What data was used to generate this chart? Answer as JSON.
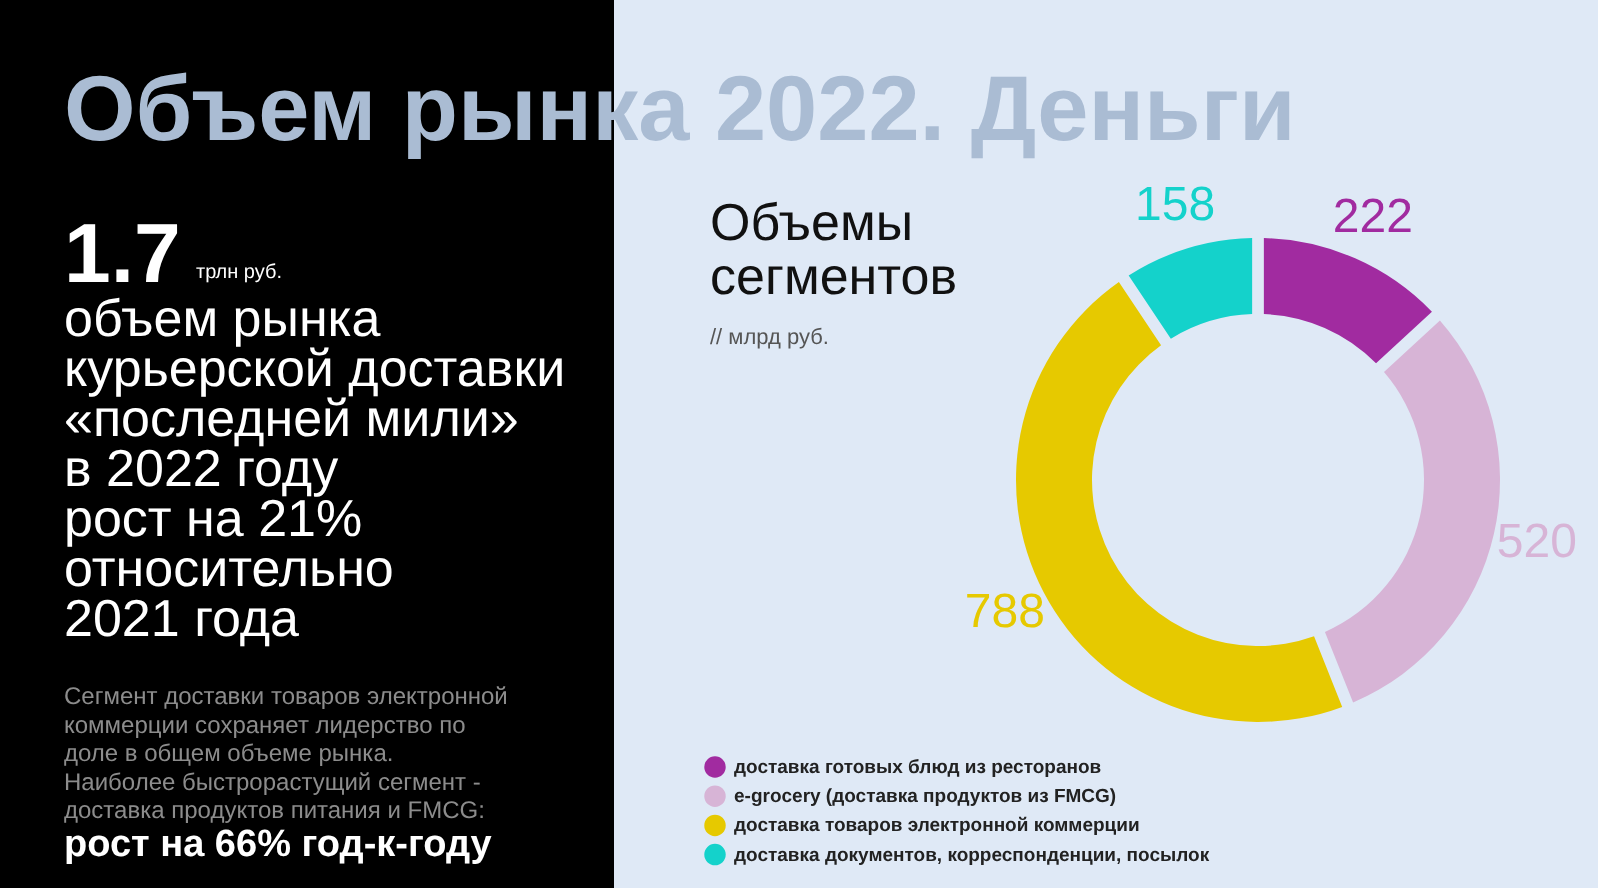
{
  "chart_data": {
    "type": "donut",
    "title": "Объем рынка 2022. Деньги",
    "subtitle": "Объемы\nсегментов",
    "categories": [
      "доставка готовых блюд из ресторанов",
      "e-grocery (доставка продуктов из FMCG)",
      "доставка товаров электронной коммерции",
      "доставка документов, корреспонденции, посылок"
    ],
    "values": [
      222,
      520,
      788,
      158
    ],
    "colors": [
      "#a12ba0",
      "#d7b4d6",
      "#e6c900",
      "#14d2cb"
    ],
    "data_labels": true,
    "legend": "bottom left",
    "annotations": [
      "// млрд руб.",
      "1.7",
      "трлн руб.",
      "объем рынка\nкурьерской доставки\n«последней мили»\nв 2022 году\nрост на 21%\nотносительно\n2021 года",
      "Сегмент доставки товаров электронной\nкоммерции сохраняет лидерство по\nдоле в общем объеме рынка.\nНаиболее быстрорастущий сегмент -\nдоставка продуктов питания и FMCG:",
      "рост на 66% год-к-году"
    ]
  }
}
